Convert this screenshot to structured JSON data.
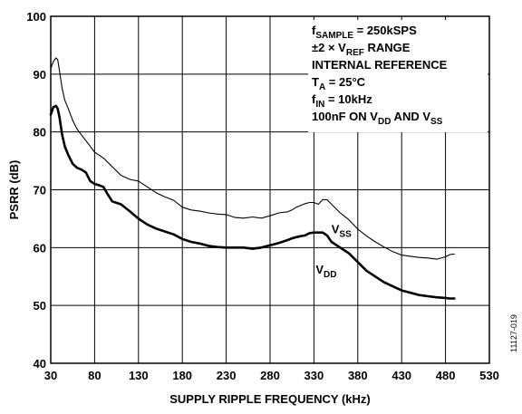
{
  "chart_data": {
    "type": "line",
    "title": "",
    "xlabel": "SUPPLY RIPPLE FREQUENCY (kHz)",
    "ylabel": "PSRR (dB)",
    "xlim": [
      30,
      530
    ],
    "ylim": [
      40,
      100
    ],
    "xticks": [
      30,
      80,
      130,
      180,
      230,
      280,
      330,
      380,
      430,
      480,
      530
    ],
    "yticks": [
      40,
      50,
      60,
      70,
      80,
      90,
      100
    ],
    "grid": true,
    "conditions": [
      {
        "main": "f",
        "sub": "SAMPLE",
        "rest": " = 250kSPS"
      },
      {
        "main": "±2 × V",
        "sub": "REF",
        "rest": " RANGE"
      },
      {
        "main": "INTERNAL REFERENCE",
        "sub": "",
        "rest": ""
      },
      {
        "main": "T",
        "sub": "A",
        "rest": " = 25°C"
      },
      {
        "main": "f",
        "sub": "IN",
        "rest": " = 10kHz"
      },
      {
        "main": "100nF ON V",
        "sub": "DD",
        "rest": " AND V",
        "sub2": "SS"
      }
    ],
    "figure_id": "11127-019",
    "series": [
      {
        "label_main": "V",
        "label_sub": "SS",
        "label_at": [
          350,
          62.5
        ],
        "stroke_width": 1.1,
        "x": [
          30,
          33,
          36,
          38,
          40,
          43,
          46,
          50,
          55,
          60,
          65,
          70,
          75,
          80,
          85,
          90,
          100,
          110,
          120,
          130,
          140,
          150,
          160,
          170,
          180,
          190,
          200,
          210,
          220,
          230,
          240,
          250,
          260,
          270,
          280,
          290,
          300,
          305,
          310,
          315,
          320,
          325,
          330,
          335,
          340,
          345,
          350,
          360,
          370,
          380,
          390,
          400,
          410,
          420,
          430,
          440,
          450,
          460,
          470,
          480,
          485,
          490
        ],
        "y": [
          91,
          92.2,
          92.8,
          92.5,
          90.5,
          87.5,
          85.5,
          84,
          82,
          80.5,
          79.5,
          78.5,
          77.5,
          76.5,
          76,
          75.5,
          74,
          72.5,
          71.8,
          71.5,
          70.5,
          69.5,
          68.8,
          68.2,
          67,
          66.5,
          66.3,
          66,
          65.8,
          65.7,
          65.2,
          65.1,
          65.3,
          65.1,
          65.5,
          66,
          66.2,
          66.5,
          67,
          67.3,
          67.6,
          67.8,
          67.8,
          67.5,
          68.3,
          68.3,
          67.5,
          66,
          64.8,
          63.2,
          62,
          61,
          60.1,
          59.3,
          58.7,
          58.5,
          58.3,
          58.2,
          58,
          58.4,
          58.8,
          58.9
        ]
      },
      {
        "label_main": "V",
        "label_sub": "DD",
        "label_at": [
          332,
          55.5
        ],
        "stroke_width": 2.6,
        "x": [
          30,
          33,
          36,
          38,
          40,
          43,
          46,
          50,
          55,
          60,
          65,
          70,
          75,
          80,
          85,
          90,
          95,
          100,
          110,
          120,
          130,
          140,
          150,
          160,
          170,
          180,
          190,
          200,
          210,
          220,
          230,
          240,
          250,
          260,
          270,
          280,
          290,
          300,
          305,
          310,
          315,
          320,
          325,
          330,
          335,
          340,
          345,
          350,
          360,
          370,
          380,
          390,
          400,
          410,
          420,
          430,
          440,
          450,
          460,
          470,
          480,
          485,
          490
        ],
        "y": [
          83,
          84.3,
          84.5,
          84,
          82.5,
          79.5,
          77.5,
          76,
          74.5,
          73.8,
          73.5,
          73,
          71.5,
          71,
          70.8,
          70.5,
          69.2,
          68,
          67.5,
          66.3,
          65,
          64,
          63.3,
          62.8,
          62.3,
          61.5,
          61,
          60.7,
          60.3,
          60.1,
          60,
          60,
          60,
          59.8,
          60,
          60.4,
          60.8,
          61.3,
          61.6,
          61.8,
          62,
          62.1,
          62.5,
          62.6,
          62.6,
          62.6,
          62.1,
          61,
          60,
          59,
          57.5,
          56,
          55,
          54,
          53.3,
          52.6,
          52.2,
          51.8,
          51.6,
          51.4,
          51.3,
          51.2,
          51.2
        ]
      }
    ]
  }
}
